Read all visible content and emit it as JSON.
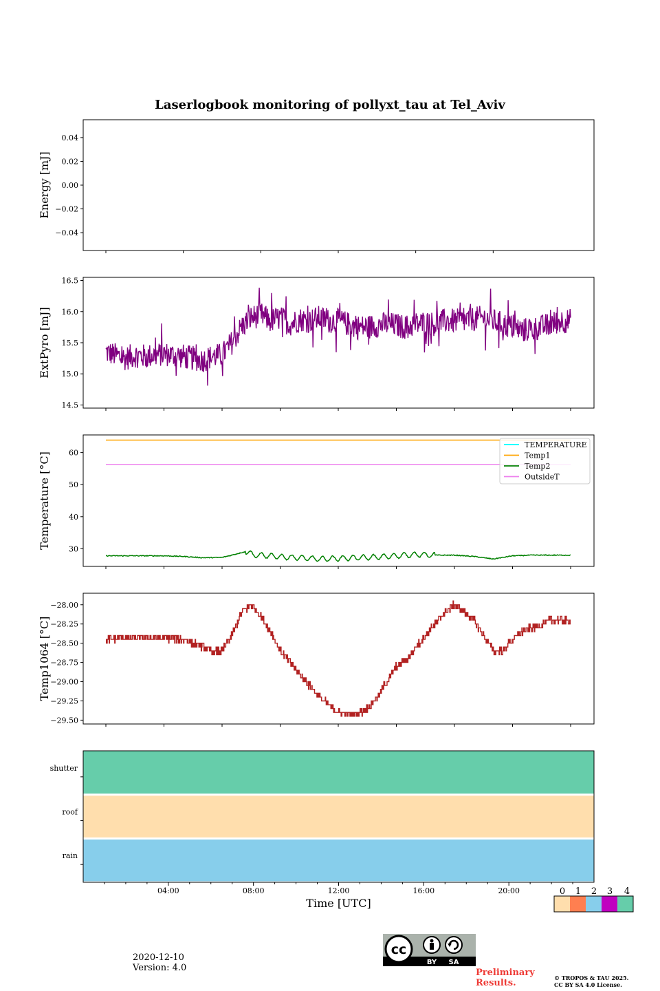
{
  "title": "Laserlogbook monitoring of pollyxt_tau at Tel_Aviv",
  "footer": {
    "date": "2020-12-10",
    "version": "Version: 4.0",
    "preliminary": [
      "Preliminary",
      "Results."
    ],
    "copyright": [
      "© TROPOS & TAU 2025.",
      "CC BY SA 4.0 License."
    ],
    "license_badge": [
      "BY",
      "SA"
    ]
  },
  "colors": {
    "extpyro": "#800080",
    "temperature": "#00ffff",
    "temp1": "#ffa500",
    "temp2": "#008000",
    "outsideT": "#ee82ee",
    "temp1064": "#b22222",
    "status": [
      "#ffdead",
      "#ff7f50",
      "#87ceeb",
      "#c000c0",
      "#66cdaa"
    ]
  },
  "chart_data": [
    {
      "id": "energy",
      "type": "line",
      "ylabel": "Energy [mJ]",
      "ylim": [
        -0.055,
        0.055
      ],
      "yticks": [
        0.04,
        0.02,
        0.0,
        -0.02,
        -0.04
      ],
      "ytick_labels": [
        "0.04",
        "0.02",
        "0.00",
        "−0.02",
        "−0.04"
      ],
      "xtick_hours": [
        0,
        4,
        8,
        12,
        16,
        20
      ],
      "series": []
    },
    {
      "id": "extpyro",
      "type": "line",
      "ylabel": "ExtPyro [mJ]",
      "ylim": [
        14.45,
        16.55
      ],
      "yticks": [
        16.5,
        16.0,
        15.5,
        15.0,
        14.5
      ],
      "ytick_labels": [
        "16.5",
        "16.0",
        "15.5",
        "15.0",
        "14.5"
      ],
      "xtick_hours": [
        0,
        3,
        6,
        9,
        12,
        15,
        18,
        21,
        24
      ],
      "series": [
        {
          "x_hours": [
            0.0,
            0.5,
            1.0,
            1.5,
            2.0,
            2.5,
            3.0,
            3.5,
            4.0,
            4.5,
            5.0,
            5.5,
            6.0,
            6.5,
            7.0,
            7.5,
            8.0,
            8.5,
            9.0,
            9.5,
            10.0,
            10.5,
            11.0,
            11.5,
            12.0,
            12.5,
            13.0,
            13.5,
            14.0,
            14.5,
            15.0,
            15.5,
            16.0,
            16.5,
            17.0,
            17.5,
            18.0,
            18.5,
            19.0,
            19.5,
            20.0,
            20.5,
            21.0,
            21.5,
            22.0,
            22.5,
            23.0,
            23.5,
            24.0
          ],
          "values": [
            15.35,
            15.3,
            15.25,
            15.3,
            15.28,
            15.3,
            15.32,
            15.3,
            15.28,
            15.25,
            15.22,
            15.28,
            15.3,
            15.5,
            15.75,
            15.9,
            15.95,
            15.85,
            15.9,
            15.8,
            15.88,
            15.85,
            15.9,
            15.85,
            15.85,
            15.8,
            15.75,
            15.75,
            15.78,
            15.8,
            15.78,
            15.75,
            15.8,
            15.82,
            15.8,
            15.85,
            15.85,
            15.85,
            15.88,
            15.9,
            15.85,
            15.8,
            15.75,
            15.7,
            15.72,
            15.75,
            15.8,
            15.85,
            15.85
          ],
          "noise": 0.2
        }
      ]
    },
    {
      "id": "temperature",
      "type": "line",
      "ylabel": "Temperature [°C]",
      "ylim": [
        24.5,
        65.5
      ],
      "yticks": [
        60,
        50,
        40,
        30
      ],
      "ytick_labels": [
        "60",
        "50",
        "40",
        "30"
      ],
      "xtick_hours": [
        0,
        3,
        6,
        9,
        12,
        15,
        18,
        21,
        24
      ],
      "legend": [
        "TEMPERATURE",
        "Temp1",
        "Temp2",
        "OutsideT"
      ],
      "legend_loc": "upper right",
      "series": [
        {
          "name": "TEMPERATURE",
          "x_hours": [],
          "values": []
        },
        {
          "name": "Temp1",
          "x_hours": [
            0,
            24
          ],
          "values": [
            63.9,
            63.9
          ]
        },
        {
          "name": "Temp2",
          "x_hours": [
            0,
            1,
            2,
            3,
            4,
            5,
            6,
            6.5,
            7.0,
            7.3,
            7.6,
            8,
            9,
            10,
            11,
            12,
            13,
            14,
            15,
            16,
            17,
            18,
            19,
            20,
            21,
            22,
            23,
            24
          ],
          "values": [
            27.8,
            27.8,
            27.8,
            27.8,
            27.6,
            27.2,
            27.3,
            28.0,
            28.8,
            29.2,
            28.0,
            28.0,
            27.5,
            27.2,
            26.8,
            27.0,
            27.2,
            27.4,
            27.8,
            28.2,
            28.0,
            28.0,
            27.6,
            26.8,
            27.8,
            28.0,
            28.0,
            28.0
          ],
          "wiggle_range": [
            7.2,
            17.0
          ]
        },
        {
          "name": "OutsideT",
          "x_hours": [
            0,
            24
          ],
          "values": [
            56.3,
            56.3
          ]
        }
      ]
    },
    {
      "id": "temp1064",
      "type": "line",
      "ylabel": "Temp1064 [°C]",
      "ylim": [
        -29.55,
        -27.85
      ],
      "yticks": [
        -28.0,
        -28.25,
        -28.5,
        -28.75,
        -29.0,
        -29.25,
        -29.5
      ],
      "ytick_labels": [
        "−28.00",
        "−28.25",
        "−28.50",
        "−28.75",
        "−29.00",
        "−29.25",
        "−29.50"
      ],
      "xtick_hours": [
        0,
        3,
        6,
        9,
        12,
        15,
        18,
        21,
        24
      ],
      "series": [
        {
          "x_hours": [
            0,
            1,
            2,
            3,
            4,
            4.5,
            5,
            5.5,
            6,
            6.5,
            7,
            7.5,
            8,
            8.5,
            9,
            9.5,
            10,
            10.5,
            11,
            11.5,
            12,
            12.5,
            13,
            13.5,
            14,
            14.5,
            15,
            15.5,
            16,
            16.5,
            17,
            17.5,
            18,
            18.5,
            19,
            19.5,
            20,
            20.5,
            21,
            21.5,
            22,
            22.5,
            23,
            23.5,
            24
          ],
          "values": [
            -28.45,
            -28.43,
            -28.43,
            -28.43,
            -28.45,
            -28.5,
            -28.55,
            -28.62,
            -28.6,
            -28.4,
            -28.1,
            -28.0,
            -28.15,
            -28.35,
            -28.6,
            -28.75,
            -28.9,
            -29.05,
            -29.2,
            -29.3,
            -29.4,
            -29.42,
            -29.42,
            -29.35,
            -29.2,
            -29.0,
            -28.8,
            -28.72,
            -28.55,
            -28.4,
            -28.25,
            -28.1,
            -28.0,
            -28.1,
            -28.2,
            -28.4,
            -28.6,
            -28.6,
            -28.45,
            -28.35,
            -28.3,
            -28.25,
            -28.2,
            -28.2,
            -28.22
          ],
          "step": 0.05
        }
      ]
    },
    {
      "id": "status",
      "type": "heatmap",
      "xlabel": "Time [UTC]",
      "rows": [
        "shutter",
        "roof",
        "rain"
      ],
      "row_values": [
        4,
        0,
        2
      ],
      "xlim_hours": [
        0,
        24
      ],
      "xtick_hours": [
        4,
        8,
        12,
        16,
        20
      ],
      "xtick_labels": [
        "04:00",
        "08:00",
        "12:00",
        "16:00",
        "20:00"
      ],
      "colorbar_ticks": [
        "0",
        "1",
        "2",
        "3",
        "4"
      ]
    }
  ]
}
